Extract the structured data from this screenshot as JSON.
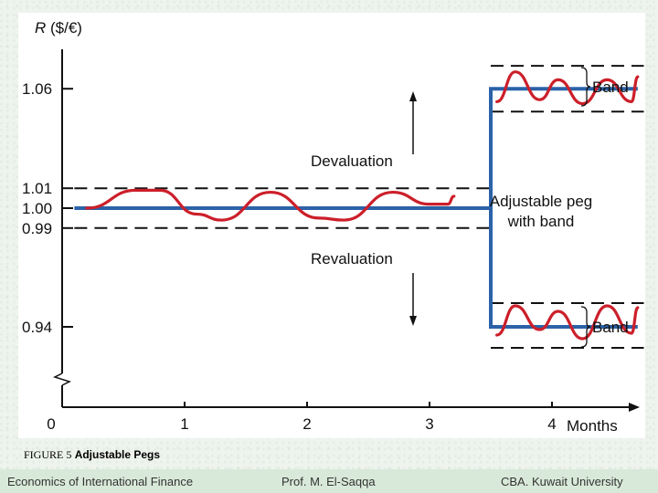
{
  "chart_data": {
    "type": "line",
    "ylabel_italic": "R",
    "ylabel_rest": " ($/€)",
    "xlabel": "Months",
    "x_ticks": [
      0,
      1,
      2,
      3,
      4
    ],
    "y_ticks": [
      {
        "value": 1.06,
        "label": "1.06"
      },
      {
        "value": 1.01,
        "label": "1.01"
      },
      {
        "value": 1.0,
        "label": "1.00"
      },
      {
        "value": 0.99,
        "label": "0.99"
      },
      {
        "value": 0.94,
        "label": "0.94"
      }
    ],
    "peg_path": [
      [
        0.1,
        1.0
      ],
      [
        3.5,
        1.0
      ],
      [
        3.5,
        1.06
      ],
      [
        4.7,
        1.06
      ]
    ],
    "peg_path_lower": [
      [
        3.5,
        1.0
      ],
      [
        3.5,
        0.94
      ],
      [
        4.7,
        0.94
      ]
    ],
    "bands": [
      {
        "from": 0.1,
        "to": 3.5,
        "upper": 1.01,
        "lower": 0.99
      },
      {
        "from": 3.5,
        "to": 4.75,
        "upper": 1.0715,
        "lower": 1.0485
      },
      {
        "from": 3.5,
        "to": 4.75,
        "upper": 0.953,
        "lower": 0.9285
      }
    ],
    "rate_paths": [
      [
        [
          0.2,
          1.0
        ],
        [
          0.6,
          1.009
        ],
        [
          0.8,
          1.009
        ],
        [
          1.1,
          0.997
        ],
        [
          1.3,
          0.994
        ],
        [
          1.7,
          1.008
        ],
        [
          2.1,
          0.995
        ],
        [
          2.3,
          0.994
        ],
        [
          2.7,
          1.008
        ],
        [
          3.0,
          1.002
        ],
        [
          3.15,
          1.002
        ],
        [
          3.2,
          1.006
        ]
      ],
      [
        [
          3.55,
          1.0535
        ],
        [
          3.7,
          1.0685
        ],
        [
          3.9,
          1.0545
        ],
        [
          4.05,
          1.0645
        ],
        [
          4.25,
          1.0525
        ],
        [
          4.45,
          1.0645
        ],
        [
          4.65,
          1.0535
        ],
        [
          4.7,
          1.066
        ]
      ],
      [
        [
          3.55,
          0.9355
        ],
        [
          3.7,
          0.9515
        ],
        [
          3.9,
          0.9385
        ],
        [
          4.05,
          0.9485
        ],
        [
          4.25,
          0.9335
        ],
        [
          4.45,
          0.9515
        ],
        [
          4.65,
          0.9365
        ],
        [
          4.7,
          0.9505
        ]
      ]
    ],
    "annotations": {
      "devaluation": "Devaluation",
      "revaluation": "Revaluation",
      "peg_line1": "Adjustable peg",
      "peg_line2": "with band",
      "band_upper": "Band",
      "band_lower": "Band"
    },
    "colors": {
      "peg": "#2b62a8",
      "rate": "#cc1f2a",
      "axis": "#111111",
      "band": "#111111"
    }
  },
  "caption": {
    "number": "FIGURE 5",
    "title": "Adjustable Pegs"
  },
  "footer": {
    "left": "Economics of International Finance",
    "center": "Prof. M. El-Saqqa",
    "right": "CBA. Kuwait University"
  }
}
